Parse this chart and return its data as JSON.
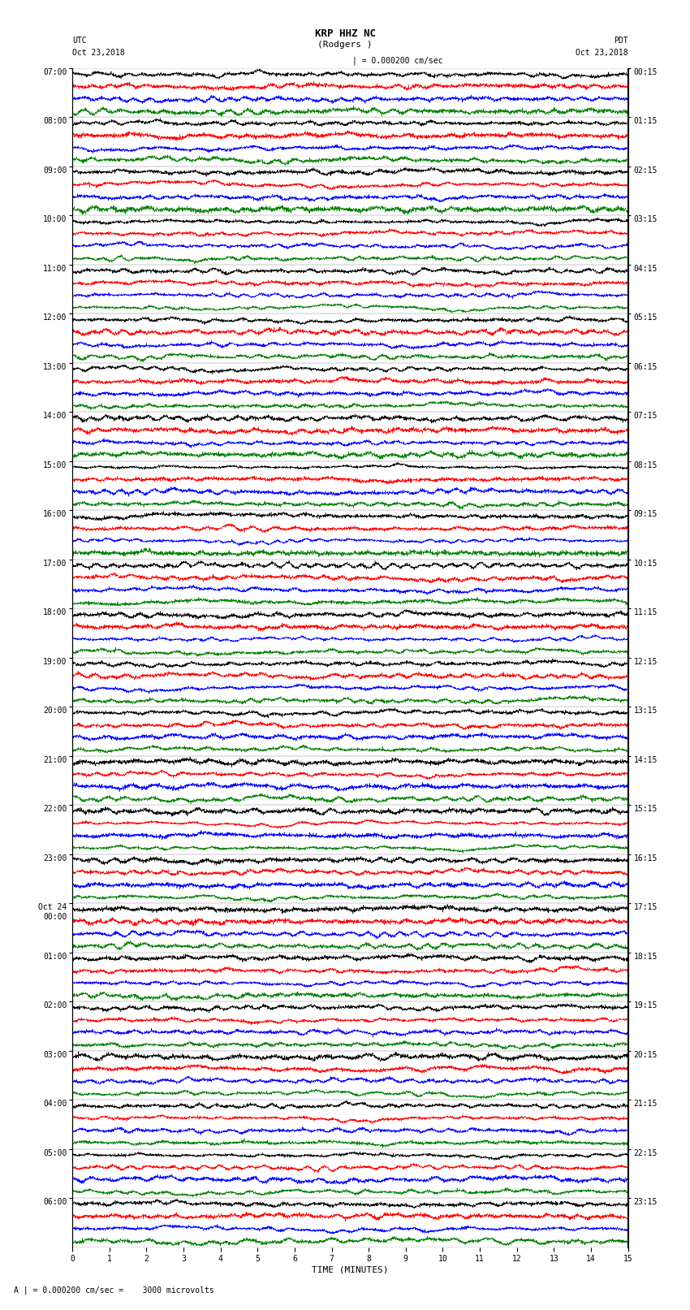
{
  "title_line1": "KRP HHZ NC",
  "title_line2": "(Rodgers )",
  "left_label_top": "UTC",
  "left_label_date": "Oct 23,2018",
  "right_label_top": "PDT",
  "right_label_date": "Oct 23,2018",
  "scale_label": "| = 0.000200 cm/sec",
  "bottom_label": "A | = 0.000200 cm/sec =    3000 microvolts",
  "xlabel": "TIME (MINUTES)",
  "xmin": 0,
  "xmax": 15,
  "colors": [
    "black",
    "red",
    "blue",
    "green"
  ],
  "background_color": "white",
  "fig_width": 8.5,
  "fig_height": 16.13,
  "left_times_utc": [
    "07:00",
    "08:00",
    "09:00",
    "10:00",
    "11:00",
    "12:00",
    "13:00",
    "14:00",
    "15:00",
    "16:00",
    "17:00",
    "18:00",
    "19:00",
    "20:00",
    "21:00",
    "22:00",
    "23:00",
    "Oct 24\n00:00",
    "01:00",
    "02:00",
    "03:00",
    "04:00",
    "05:00",
    "06:00"
  ],
  "right_times_pdt": [
    "00:15",
    "01:15",
    "02:15",
    "03:15",
    "04:15",
    "05:15",
    "06:15",
    "07:15",
    "08:15",
    "09:15",
    "10:15",
    "11:15",
    "12:15",
    "13:15",
    "14:15",
    "15:15",
    "16:15",
    "17:15",
    "18:15",
    "19:15",
    "20:15",
    "21:15",
    "22:15",
    "23:15"
  ],
  "n_rows": 24,
  "traces_per_row": 4,
  "amplitude_scale": 0.42,
  "seed": 42
}
